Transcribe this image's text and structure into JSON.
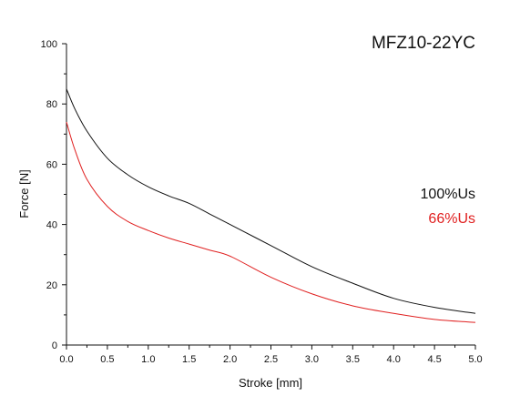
{
  "chart_data": {
    "type": "line",
    "title": "MFZ10-22YC",
    "xlabel": "Stroke [mm]",
    "ylabel": "Force [N]",
    "xlim": [
      0,
      5
    ],
    "ylim": [
      0,
      100
    ],
    "x_ticks": [
      "0.0",
      "0.5",
      "1.0",
      "1.5",
      "2.0",
      "2.5",
      "3.0",
      "3.5",
      "4.0",
      "4.5",
      "5.0"
    ],
    "y_ticks": [
      "0",
      "20",
      "40",
      "60",
      "80",
      "100"
    ],
    "grid": false,
    "legend_position": "right",
    "series": [
      {
        "name": "100%Us",
        "color": "#111111",
        "points": [
          [
            0.0,
            85
          ],
          [
            0.1,
            78.5
          ],
          [
            0.25,
            71
          ],
          [
            0.5,
            62
          ],
          [
            0.75,
            56.5
          ],
          [
            1.0,
            52.5
          ],
          [
            1.25,
            49.5
          ],
          [
            1.5,
            47
          ],
          [
            1.75,
            43.5
          ],
          [
            2.0,
            40
          ],
          [
            2.5,
            33
          ],
          [
            3.0,
            26
          ],
          [
            3.5,
            20.5
          ],
          [
            4.0,
            15.5
          ],
          [
            4.5,
            12.5
          ],
          [
            5.0,
            10.5
          ]
        ]
      },
      {
        "name": "66%Us",
        "color": "#e02020",
        "points": [
          [
            0.0,
            74
          ],
          [
            0.1,
            65
          ],
          [
            0.25,
            55
          ],
          [
            0.5,
            46
          ],
          [
            0.75,
            41
          ],
          [
            1.0,
            38
          ],
          [
            1.25,
            35.5
          ],
          [
            1.5,
            33.5
          ],
          [
            1.75,
            31.5
          ],
          [
            2.0,
            29.5
          ],
          [
            2.5,
            22.5
          ],
          [
            3.0,
            17
          ],
          [
            3.5,
            13
          ],
          [
            4.0,
            10.5
          ],
          [
            4.5,
            8.5
          ],
          [
            5.0,
            7.5
          ]
        ]
      }
    ]
  }
}
